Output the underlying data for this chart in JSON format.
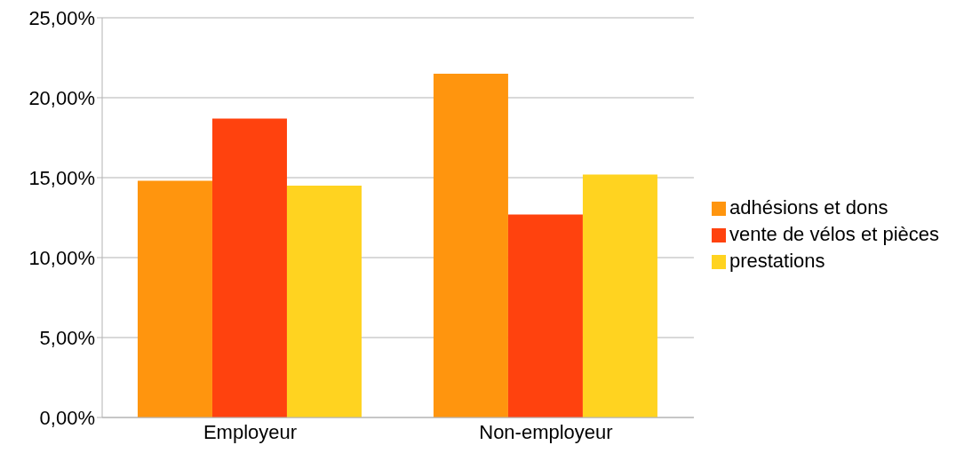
{
  "chart_data": {
    "type": "bar",
    "categories": [
      "Employeur",
      "Non-employeur"
    ],
    "series": [
      {
        "name": "adhésions et dons",
        "color": "#ff950e",
        "values": [
          14.8,
          21.5
        ]
      },
      {
        "name": "vente de vélos et pièces",
        "color": "#ff420e",
        "values": [
          18.7,
          12.7
        ]
      },
      {
        "name": "prestations",
        "color": "#ffd320",
        "values": [
          14.5,
          15.2
        ]
      }
    ],
    "ylim": [
      0,
      25
    ],
    "yticks": [
      {
        "value": 0,
        "label": "0,00%"
      },
      {
        "value": 5,
        "label": "5,00%"
      },
      {
        "value": 10,
        "label": "10,00%"
      },
      {
        "value": 15,
        "label": "15,00%"
      },
      {
        "value": 20,
        "label": "20,00%"
      },
      {
        "value": 25,
        "label": "25,00%"
      }
    ],
    "grid": "y",
    "legend": "right"
  }
}
